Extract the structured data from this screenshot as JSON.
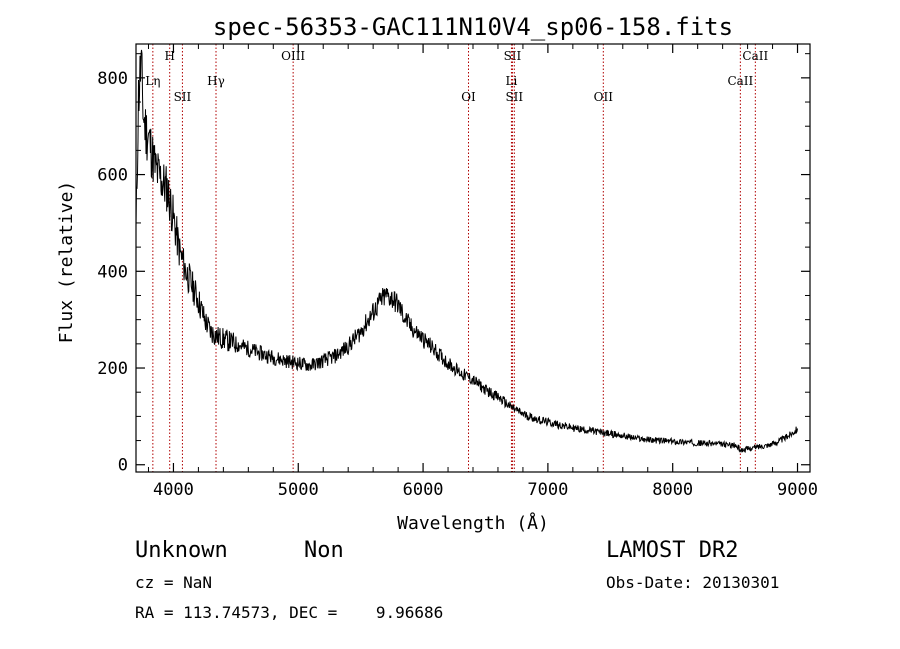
{
  "chart_data": {
    "type": "line",
    "title": "spec-56353-GAC111N10V4_sp06-158.fits",
    "xlabel": "Wavelength (Å)",
    "ylabel": "Flux (relative)",
    "xlim": [
      3700,
      9100
    ],
    "ylim": [
      -15,
      870
    ],
    "xticks": [
      4000,
      5000,
      6000,
      7000,
      8000,
      9000
    ],
    "yticks": [
      0,
      200,
      400,
      600,
      800
    ],
    "grid": false,
    "line_color": "#000000",
    "marker_color": "#b00000",
    "series": [
      {
        "x": [
          3700,
          3720,
          3740,
          3760,
          3780,
          3800,
          3830,
          3860,
          3900,
          3950,
          4000,
          4050,
          4100,
          4150,
          4200,
          4250,
          4300,
          4350,
          4400,
          4500,
          4600,
          4700,
          4800,
          4900,
          5000,
          5100,
          5200,
          5300,
          5400,
          5500,
          5600,
          5650,
          5700,
          5750,
          5800,
          5850,
          5900,
          6000,
          6100,
          6200,
          6300,
          6400,
          6500,
          6600,
          6700,
          6800,
          6850,
          6900,
          7000,
          7100,
          7200,
          7300,
          7400,
          7500,
          7600,
          7700,
          7800,
          7900,
          8000,
          8100,
          8200,
          8300,
          8400,
          8500,
          8550,
          8600,
          8700,
          8800,
          8900,
          8950,
          9000
        ],
        "y": [
          480,
          760,
          830,
          720,
          690,
          680,
          640,
          610,
          590,
          570,
          510,
          440,
          400,
          370,
          340,
          300,
          275,
          265,
          260,
          250,
          240,
          230,
          222,
          215,
          210,
          205,
          215,
          225,
          245,
          275,
          315,
          335,
          350,
          345,
          330,
          305,
          285,
          260,
          235,
          210,
          190,
          175,
          155,
          140,
          120,
          105,
          100,
          95,
          88,
          82,
          76,
          72,
          68,
          64,
          60,
          55,
          52,
          50,
          48,
          47,
          45,
          44,
          42,
          40,
          30,
          33,
          38,
          43,
          55,
          65,
          75
        ]
      }
    ],
    "lines": [
      {
        "label": "Lη",
        "wavelength": 3835
      },
      {
        "label": "H",
        "wavelength": 3970
      },
      {
        "label": "SII",
        "wavelength": 4072
      },
      {
        "label": "Hγ",
        "wavelength": 4341
      },
      {
        "label": "OIII",
        "wavelength": 4959
      },
      {
        "label": "OI",
        "wavelength": 6364
      },
      {
        "label": "SII",
        "wavelength": 6716
      },
      {
        "label": "Li",
        "wavelength": 6708
      },
      {
        "label": "SII",
        "wavelength": 6731
      },
      {
        "label": "OII",
        "wavelength": 7444
      },
      {
        "label": "CaII",
        "wavelength": 8542
      },
      {
        "label": "CaII",
        "wavelength": 8662
      }
    ]
  },
  "footer": {
    "object_class": "Unknown",
    "object_subclass": "Non",
    "survey": "LAMOST DR2",
    "cz": "cz = NaN",
    "obs_date": "Obs-Date: 20130301",
    "coords": "RA = 113.74573, DEC =    9.96686"
  }
}
